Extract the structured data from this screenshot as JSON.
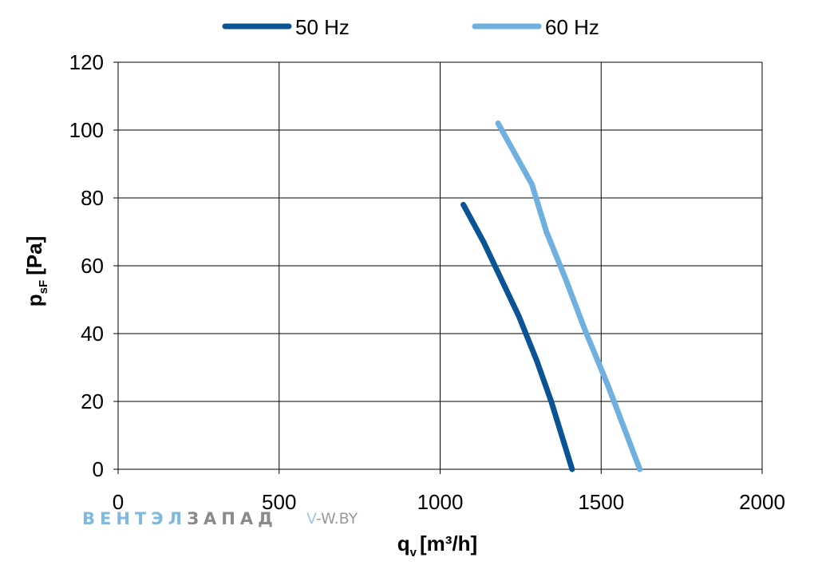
{
  "chart_data": {
    "type": "line",
    "xlabel": {
      "main": "q",
      "sub": "v",
      "unit": "[m³/h]"
    },
    "ylabel": {
      "main": "p",
      "sub": "sF",
      "unit": "[Pa]"
    },
    "xlim": [
      0,
      2000
    ],
    "ylim": [
      0,
      120
    ],
    "xticks": [
      "0",
      "500",
      "1000",
      "1500",
      "2000"
    ],
    "yticks": [
      "0",
      "20",
      "40",
      "60",
      "80",
      "100",
      "120"
    ],
    "grid": true,
    "legend_position": "top",
    "series": [
      {
        "name": "50 Hz",
        "color": "#0a5394",
        "x": [
          1072,
          1135,
          1190,
          1245,
          1300,
          1345,
          1410
        ],
        "y": [
          78,
          67,
          56,
          45,
          32,
          20,
          0
        ]
      },
      {
        "name": "60 Hz",
        "color": "#6fb0e0",
        "x": [
          1180,
          1285,
          1330,
          1390,
          1450,
          1520,
          1620
        ],
        "y": [
          102,
          84,
          70,
          56,
          41,
          25,
          0
        ]
      }
    ]
  },
  "watermark": {
    "part1": "ВЕНТЭЛ",
    "part2": "ЗАПАД",
    "site_a": "V",
    "site_b": "-W.BY"
  }
}
